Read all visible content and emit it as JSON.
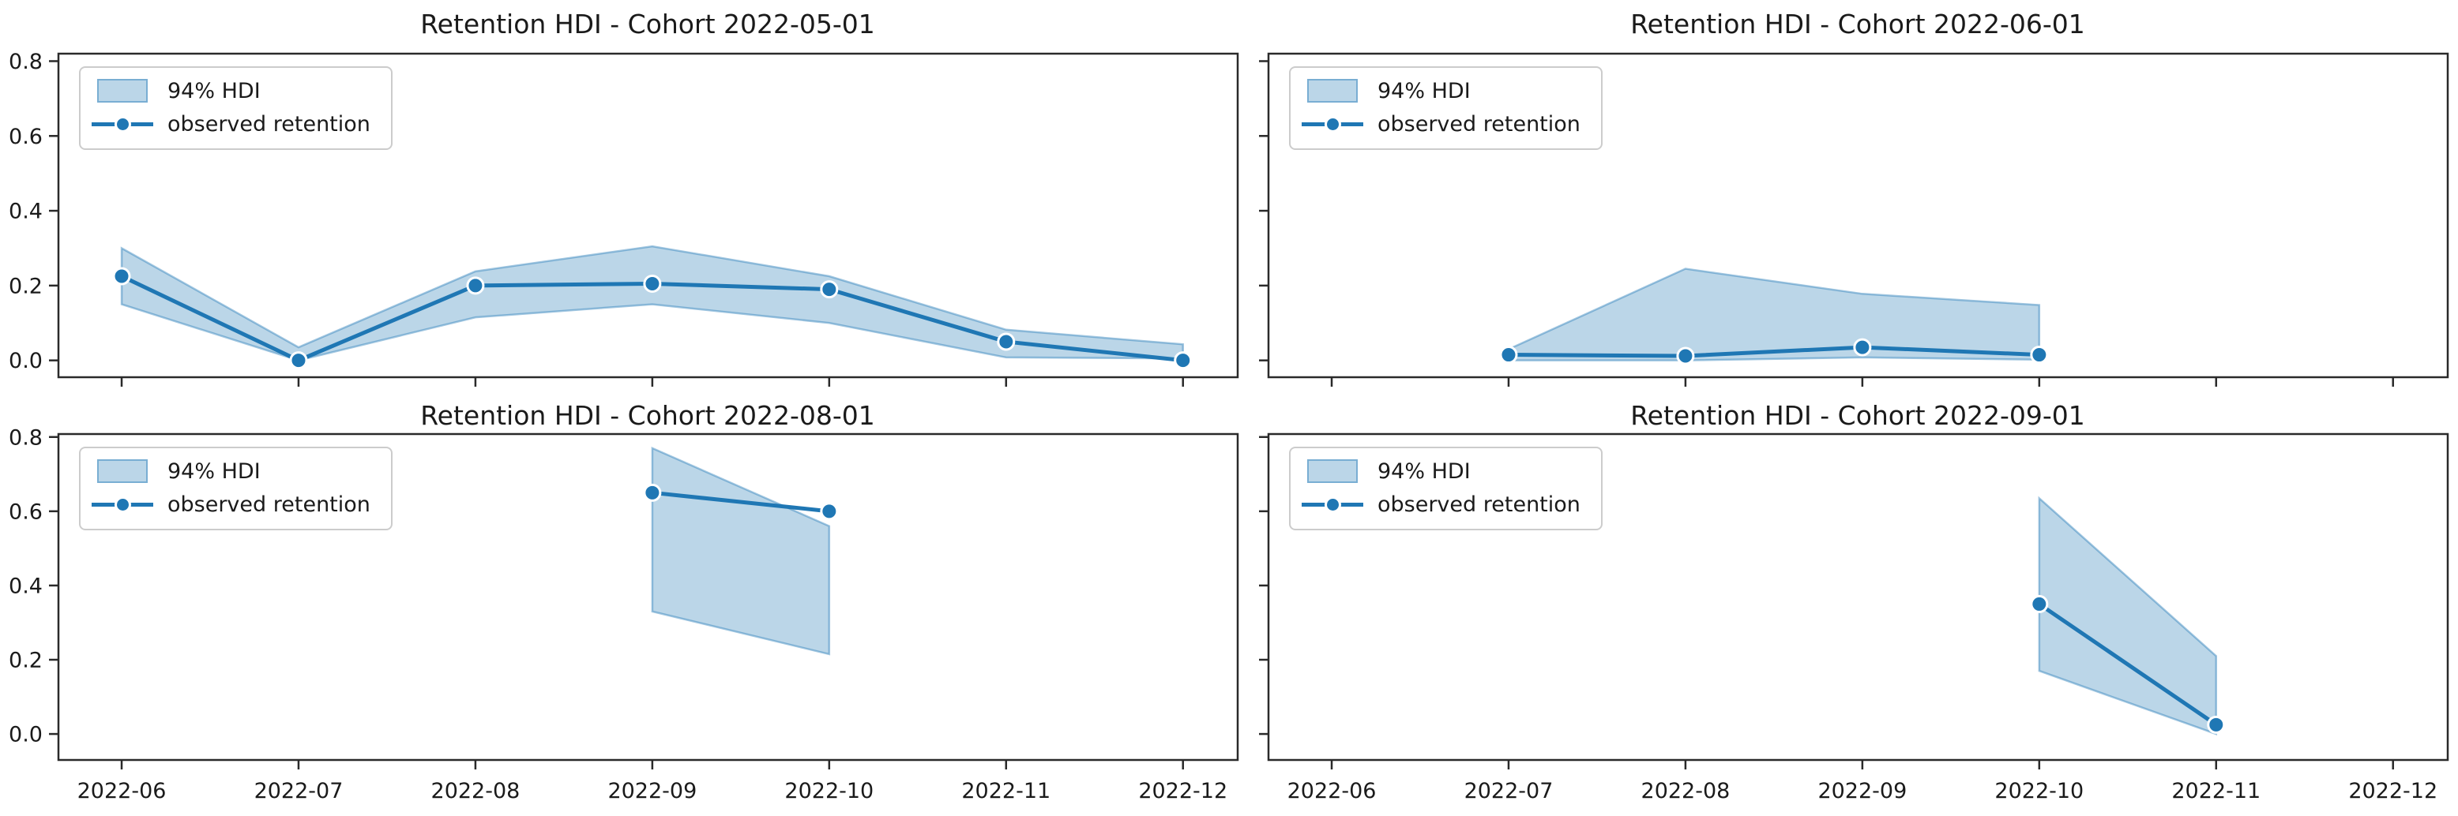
{
  "figure": {
    "background": "#ffffff",
    "text_color": "#1a1a1a",
    "colors": {
      "line": "#1f77b4",
      "band_fill": "rgba(31,119,180,0.30)",
      "band_edge": "rgba(31,119,180,0.42)",
      "marker_fill": "#1f77b4",
      "marker_edge": "#ffffff",
      "spine": "#2a2a2a",
      "legend_border": "#cccccc",
      "legend_bg": "rgba(255,255,255,0.92)"
    },
    "y_tick_labels": [
      "0.0",
      "0.2",
      "0.4",
      "0.6",
      "0.8"
    ],
    "x_tick_labels": [
      "2022-06",
      "2022-07",
      "2022-08",
      "2022-09",
      "2022-10",
      "2022-11",
      "2022-12"
    ]
  },
  "chart_data": [
    {
      "type": "line",
      "title": "Retention HDI - Cohort 2022-05-01",
      "position": "top-left",
      "x_axis": {
        "categories": [
          "2022-06",
          "2022-07",
          "2022-08",
          "2022-09",
          "2022-10",
          "2022-11",
          "2022-12"
        ],
        "tick_labels_visible": false
      },
      "y_axis": {
        "ticks": [
          0.0,
          0.2,
          0.4,
          0.6,
          0.8
        ],
        "tick_labels_visible": true,
        "ylim": [
          -0.045,
          0.82
        ]
      },
      "legend_position": "upper left",
      "grid": false,
      "series": [
        {
          "name": "94% HDI",
          "kind": "band",
          "x": [
            "2022-06",
            "2022-07",
            "2022-08",
            "2022-09",
            "2022-10",
            "2022-11",
            "2022-12"
          ],
          "low": [
            0.15,
            0.0,
            0.115,
            0.15,
            0.1,
            0.008,
            0.005
          ],
          "high": [
            0.3,
            0.035,
            0.238,
            0.305,
            0.225,
            0.082,
            0.043
          ]
        },
        {
          "name": "observed retention",
          "kind": "line-markers",
          "x": [
            "2022-06",
            "2022-07",
            "2022-08",
            "2022-09",
            "2022-10",
            "2022-11",
            "2022-12"
          ],
          "y": [
            0.225,
            0.0,
            0.2,
            0.205,
            0.19,
            0.05,
            0.0
          ]
        }
      ]
    },
    {
      "type": "line",
      "title": "Retention HDI - Cohort 2022-06-01",
      "position": "top-right",
      "x_axis": {
        "categories": [
          "2022-06",
          "2022-07",
          "2022-08",
          "2022-09",
          "2022-10",
          "2022-11",
          "2022-12"
        ],
        "tick_labels_visible": false
      },
      "y_axis": {
        "ticks": [
          0.0,
          0.2,
          0.4,
          0.6,
          0.8
        ],
        "tick_labels_visible": false,
        "ylim": [
          -0.045,
          0.82
        ]
      },
      "legend_position": "upper left",
      "grid": false,
      "series": [
        {
          "name": "94% HDI",
          "kind": "band",
          "x": [
            "2022-07",
            "2022-08",
            "2022-09",
            "2022-10"
          ],
          "low": [
            0.0,
            0.0,
            0.008,
            0.002
          ],
          "high": [
            0.03,
            0.245,
            0.178,
            0.148
          ]
        },
        {
          "name": "observed retention",
          "kind": "line-markers",
          "x": [
            "2022-07",
            "2022-08",
            "2022-09",
            "2022-10"
          ],
          "y": [
            0.015,
            0.012,
            0.035,
            0.015
          ]
        }
      ]
    },
    {
      "type": "line",
      "title": "Retention HDI - Cohort 2022-08-01",
      "position": "bottom-left",
      "x_axis": {
        "categories": [
          "2022-06",
          "2022-07",
          "2022-08",
          "2022-09",
          "2022-10",
          "2022-11",
          "2022-12"
        ],
        "tick_labels_visible": true
      },
      "y_axis": {
        "ticks": [
          0.0,
          0.2,
          0.4,
          0.6,
          0.8
        ],
        "tick_labels_visible": true,
        "ylim": [
          -0.07,
          0.808
        ]
      },
      "legend_position": "upper left",
      "grid": false,
      "series": [
        {
          "name": "94% HDI",
          "kind": "band",
          "x": [
            "2022-09",
            "2022-10"
          ],
          "low": [
            0.33,
            0.215
          ],
          "high": [
            0.77,
            0.56
          ]
        },
        {
          "name": "observed retention",
          "kind": "line-markers",
          "x": [
            "2022-09",
            "2022-10"
          ],
          "y": [
            0.65,
            0.6
          ]
        }
      ]
    },
    {
      "type": "line",
      "title": "Retention HDI - Cohort 2022-09-01",
      "position": "bottom-right",
      "x_axis": {
        "categories": [
          "2022-06",
          "2022-07",
          "2022-08",
          "2022-09",
          "2022-10",
          "2022-11",
          "2022-12"
        ],
        "tick_labels_visible": true
      },
      "y_axis": {
        "ticks": [
          0.0,
          0.2,
          0.4,
          0.6,
          0.8
        ],
        "tick_labels_visible": false,
        "ylim": [
          -0.07,
          0.808
        ]
      },
      "legend_position": "upper left",
      "grid": false,
      "series": [
        {
          "name": "94% HDI",
          "kind": "band",
          "x": [
            "2022-10",
            "2022-11"
          ],
          "low": [
            0.17,
            0.0
          ],
          "high": [
            0.635,
            0.21
          ]
        },
        {
          "name": "observed retention",
          "kind": "line-markers",
          "x": [
            "2022-10",
            "2022-11"
          ],
          "y": [
            0.35,
            0.025
          ]
        }
      ]
    }
  ]
}
